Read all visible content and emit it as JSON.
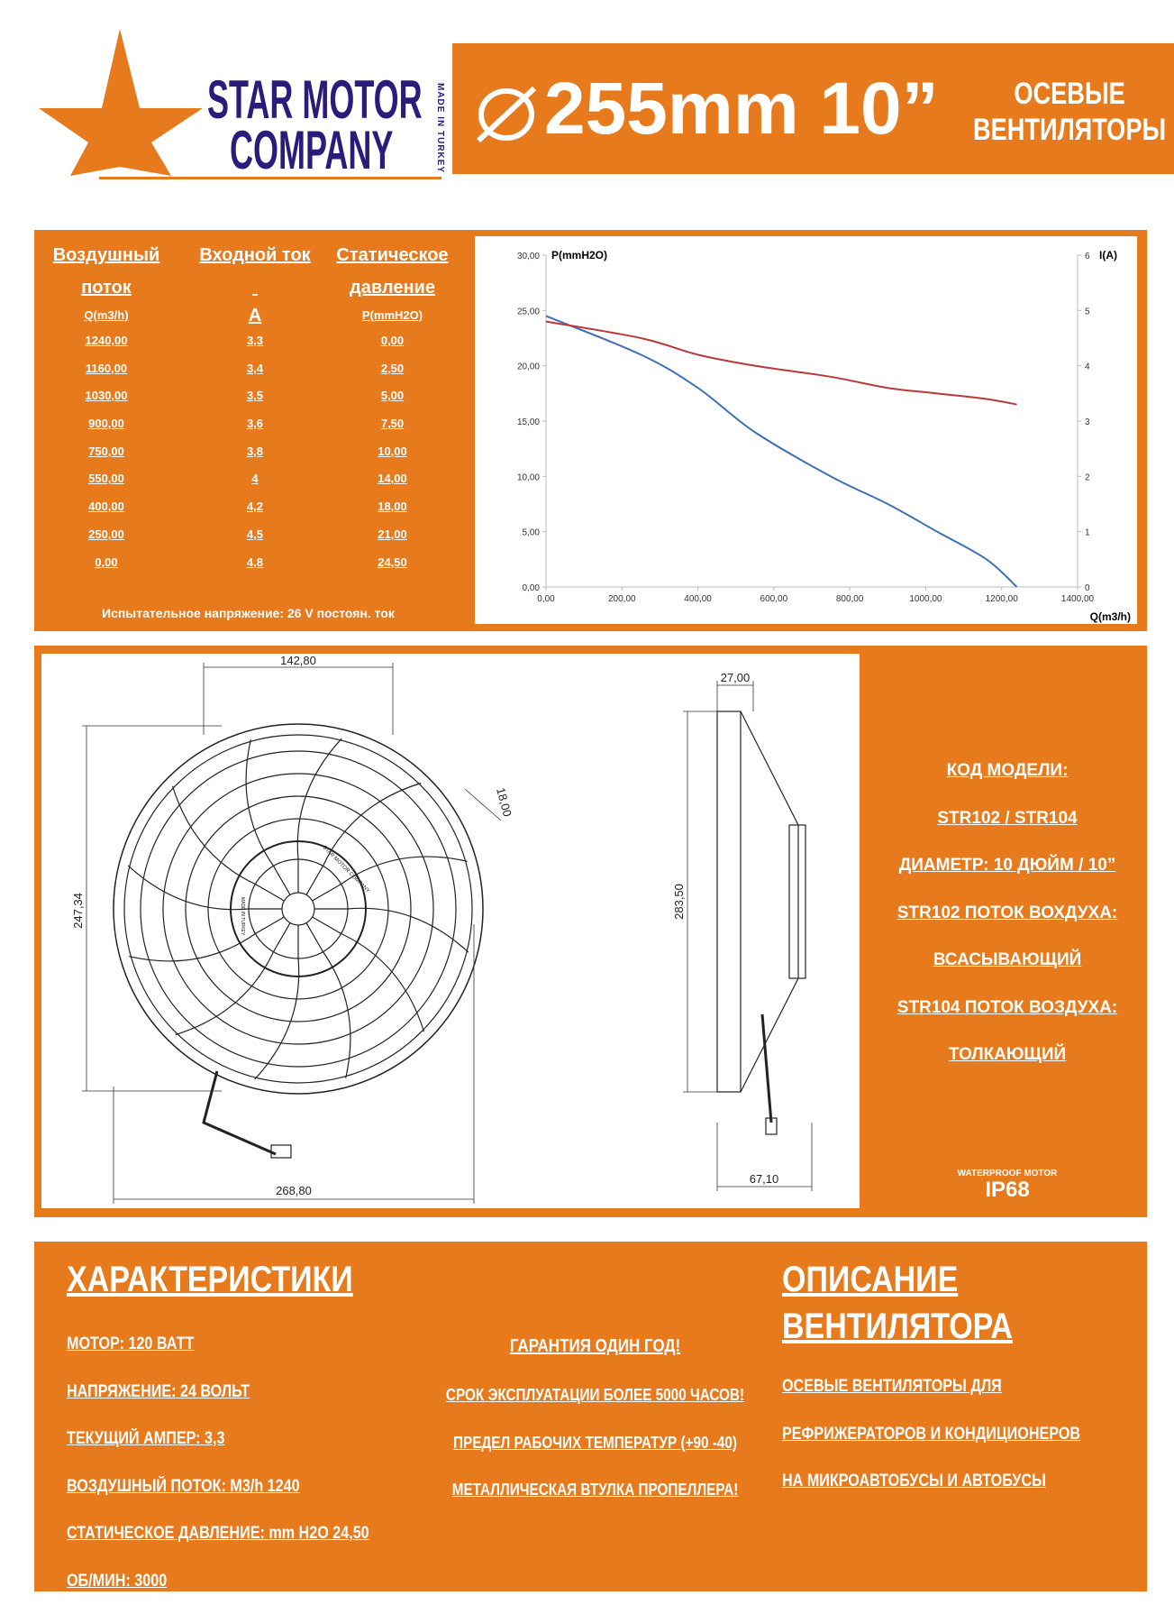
{
  "logo": {
    "line1": "STAR MOTOR",
    "line2": "COMPANY",
    "made_in": "MADE IN TURKEY",
    "star_color": "#e67a1c",
    "text_color": "#2b1c7c"
  },
  "header": {
    "diameter_icon": "diameter-symbol",
    "size": "255mm 10”",
    "title_line1": "ОСЕВЫЕ",
    "title_line2": "ВЕНТИЛЯТОРЫ"
  },
  "colors": {
    "orange": "#e67a1c",
    "pressure_line": "#3f6fb5",
    "current_line": "#b8393a"
  },
  "table": {
    "headers": [
      {
        "line1": "Воздушный",
        "line2": "поток",
        "unit": "Q(m3/h)"
      },
      {
        "line1": "Входной ток",
        "line2": "",
        "unit": "A"
      },
      {
        "line1": "Статическое",
        "line2": "давление",
        "unit": "P(mmH2O)"
      }
    ],
    "flow": [
      "1240,00",
      "1160,00",
      "1030,00",
      "900,00",
      "750,00",
      "550,00",
      "400,00",
      "250,00",
      "0,00"
    ],
    "current": [
      "3,3",
      "3,4",
      "3,5",
      "3,6",
      "3,8",
      "4",
      "4,2",
      "4,5",
      "4,8"
    ],
    "pressure": [
      "0,00",
      "2,50",
      "5,00",
      "7,50",
      "10,00",
      "14,00",
      "18,00",
      "21,00",
      "24,50"
    ],
    "note": "Испытательное напряжение: 26 V постоян. ток"
  },
  "chart_data": {
    "type": "line",
    "xlabel": "Q(m3/h)",
    "ylabel": "P(mmH2O)",
    "y2label": "I(A)",
    "xlim": [
      0,
      1400
    ],
    "ylim": [
      0,
      30
    ],
    "y2lim": [
      0,
      6
    ],
    "x_ticks": [
      "0,00",
      "200,00",
      "400,00",
      "600,00",
      "800,00",
      "1000,00",
      "1200,00",
      "1400,00"
    ],
    "y_ticks": [
      "0,00",
      "5,00",
      "10,00",
      "15,00",
      "20,00",
      "25,00",
      "30,00"
    ],
    "y2_ticks": [
      "0",
      "1",
      "2",
      "3",
      "4",
      "5",
      "6"
    ],
    "grid": false,
    "series": [
      {
        "axis": "left",
        "color": "#3f6fb5",
        "x": [
          0,
          250,
          400,
          550,
          750,
          900,
          1030,
          1160,
          1240
        ],
        "y": [
          24.5,
          21,
          18,
          14,
          10,
          7.5,
          5,
          2.5,
          0
        ]
      },
      {
        "axis": "right",
        "color": "#b8393a",
        "x": [
          0,
          250,
          400,
          550,
          750,
          900,
          1030,
          1160,
          1240
        ],
        "y": [
          4.8,
          4.5,
          4.2,
          4,
          3.8,
          3.6,
          3.5,
          3.4,
          3.3
        ]
      }
    ]
  },
  "drawing": {
    "dims": {
      "top_width": "142,80",
      "height_left": "247,34",
      "bottom_width": "268,80",
      "tab": "18,00",
      "side_top": "27,00",
      "side_height": "283,50",
      "side_depth": "67,10"
    },
    "hub_brand": "STAR MOTOR COMPANY",
    "hub_made": "MADE IN TURKEY"
  },
  "model": {
    "lines": [
      "КОД МОДЕЛИ:",
      "STR102 / STR104",
      "ДИАМЕТР: 10 ДЮЙМ / 10”",
      "STR102 ПОТОК ВОХДУХА:",
      "ВСАСЫВАЮЩИЙ",
      "STR104 ПОТОК ВОЗДУХА:",
      "ТОЛКАЮЩИЙ"
    ],
    "waterproof": "WATERPROOF MOTOR",
    "ip": "IP68"
  },
  "specs": {
    "title": "ХАРАКТЕРИСТИКИ",
    "items": [
      "МОТОР: 120 ВАТТ",
      "НАПРЯЖЕНИЕ: 24 ВОЛЬТ",
      "ТЕКУЩИЙ АМПЕР: 3,3",
      "ВОЗДУШНЫЙ ПОТОК: M3/h 1240",
      "СТАТИЧЕСКОЕ ДАВЛЕНИЕ: mm H2O   24,50",
      "ОБ/МИН: 3000"
    ]
  },
  "features": [
    "ГАРАНТИЯ ОДИН ГОД!",
    "СРОК ЭКСПЛУАТАЦИИ БОЛЕЕ 5000 ЧАСОВ!",
    "ПРЕДЕЛ РАБОЧИХ ТЕМПЕРАТУР (+90 -40)",
    "МЕТАЛЛИЧЕСКАЯ ВТУЛКА ПРОПЕЛЛЕРА!"
  ],
  "description": {
    "title_line1": "ОПИСАНИЕ",
    "title_line2": "ВЕНТИЛЯТОРА",
    "lines": [
      "ОСЕВЫЕ ВЕНТИЛЯТОРЫ ДЛЯ",
      "РЕФРИЖЕРАТОРОВ И КОНДИЦИОНЕРОВ",
      "НА МИКРОАВТОБУСЫ И АВТОБУСЫ"
    ]
  }
}
